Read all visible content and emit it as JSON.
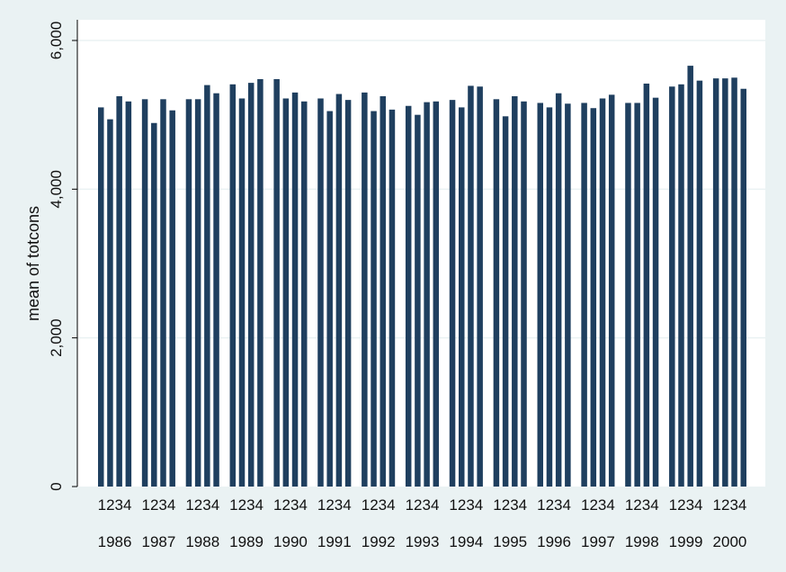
{
  "chart_data": {
    "type": "bar",
    "ylabel": "mean of totcons",
    "ylim": [
      0,
      6000
    ],
    "yticks": [
      0,
      2000,
      4000,
      6000
    ],
    "ytick_labels": [
      "0",
      "2,000",
      "4,000",
      "6,000"
    ],
    "grid": true,
    "bar_color": "#1f3f5f",
    "plot_background": "#ffffff",
    "background": "#eaf2f3",
    "groups": [
      {
        "year": "1986",
        "quarters": [
          "1",
          "2",
          "3",
          "4"
        ],
        "values": [
          5100,
          4940,
          5250,
          5180
        ]
      },
      {
        "year": "1987",
        "quarters": [
          "1",
          "2",
          "3",
          "4"
        ],
        "values": [
          5210,
          4890,
          5210,
          5060
        ]
      },
      {
        "year": "1988",
        "quarters": [
          "1",
          "2",
          "3",
          "4"
        ],
        "values": [
          5210,
          5210,
          5400,
          5290
        ]
      },
      {
        "year": "1989",
        "quarters": [
          "1",
          "2",
          "3",
          "4"
        ],
        "values": [
          5410,
          5220,
          5430,
          5480
        ]
      },
      {
        "year": "1990",
        "quarters": [
          "1",
          "2",
          "3",
          "4"
        ],
        "values": [
          5480,
          5220,
          5300,
          5180
        ]
      },
      {
        "year": "1991",
        "quarters": [
          "1",
          "2",
          "3",
          "4"
        ],
        "values": [
          5220,
          5050,
          5280,
          5200
        ]
      },
      {
        "year": "1992",
        "quarters": [
          "1",
          "2",
          "3",
          "4"
        ],
        "values": [
          5300,
          5050,
          5250,
          5070
        ]
      },
      {
        "year": "1993",
        "quarters": [
          "1",
          "2",
          "3",
          "4"
        ],
        "values": [
          5120,
          5000,
          5170,
          5180
        ]
      },
      {
        "year": "1994",
        "quarters": [
          "1",
          "2",
          "3",
          "4"
        ],
        "values": [
          5200,
          5100,
          5390,
          5380
        ]
      },
      {
        "year": "1995",
        "quarters": [
          "1",
          "2",
          "3",
          "4"
        ],
        "values": [
          5210,
          4980,
          5250,
          5180
        ]
      },
      {
        "year": "1996",
        "quarters": [
          "1",
          "2",
          "3",
          "4"
        ],
        "values": [
          5160,
          5100,
          5290,
          5150
        ]
      },
      {
        "year": "1997",
        "quarters": [
          "1",
          "2",
          "3",
          "4"
        ],
        "values": [
          5160,
          5090,
          5220,
          5270
        ]
      },
      {
        "year": "1998",
        "quarters": [
          "1",
          "2",
          "3",
          "4"
        ],
        "values": [
          5160,
          5160,
          5420,
          5230
        ]
      },
      {
        "year": "1999",
        "quarters": [
          "1",
          "2",
          "3",
          "4"
        ],
        "values": [
          5380,
          5410,
          5660,
          5460
        ]
      },
      {
        "year": "2000",
        "quarters": [
          "1",
          "2",
          "3",
          "4"
        ],
        "values": [
          5490,
          5490,
          5500,
          5350
        ]
      }
    ]
  }
}
